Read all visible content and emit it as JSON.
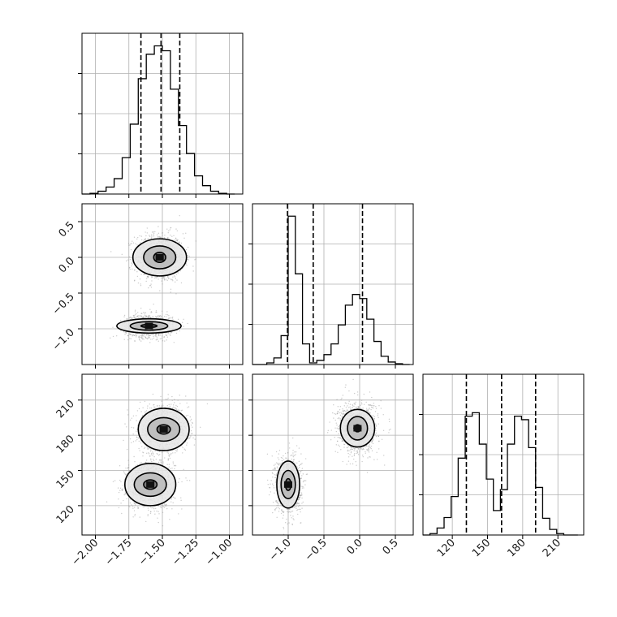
{
  "chart_data": {
    "type": "corner",
    "grid": true,
    "variables": [
      {
        "ticks": [
          -2.0,
          -1.75,
          -1.5,
          -1.25,
          -1.0
        ],
        "tick_labels": [
          "−2.00",
          "−1.75",
          "−1.50",
          "−1.25",
          "−1.00"
        ],
        "range": [
          -2.1,
          -0.9
        ]
      },
      {
        "ticks": [
          -1.0,
          -0.5,
          0.0,
          0.5
        ],
        "tick_labels": [
          "−1.0",
          "−0.5",
          "0.0",
          "0.5"
        ],
        "range": [
          -1.5,
          0.75
        ]
      },
      {
        "ticks": [
          120,
          150,
          180,
          210
        ],
        "tick_labels": [
          "120",
          "150",
          "180",
          "210"
        ],
        "range": [
          95,
          232
        ]
      }
    ],
    "histograms": [
      {
        "variable": 0,
        "bin_edges": [
          -2.1,
          -2.04,
          -1.98,
          -1.92,
          -1.86,
          -1.8,
          -1.74,
          -1.68,
          -1.62,
          -1.56,
          -1.5,
          -1.44,
          -1.38,
          -1.32,
          -1.26,
          -1.2,
          -1.14,
          -1.08,
          -1.02,
          -0.96
        ],
        "counts": [
          0,
          1,
          4,
          10,
          22,
          52,
          100,
          165,
          200,
          212,
          205,
          150,
          98,
          58,
          26,
          12,
          4,
          1,
          0
        ],
        "quantiles": [
          -1.66,
          -1.51,
          -1.37
        ],
        "ymax": 230
      },
      {
        "variable": 1,
        "bin_edges": [
          -1.5,
          -1.4,
          -1.3,
          -1.2,
          -1.1,
          -1.0,
          -0.9,
          -0.8,
          -0.7,
          -0.6,
          -0.5,
          -0.4,
          -0.3,
          -0.2,
          -0.1,
          0.0,
          0.1,
          0.2,
          0.3,
          0.4,
          0.5,
          0.6,
          0.7
        ],
        "counts": [
          0,
          0,
          2,
          8,
          35,
          180,
          110,
          25,
          2,
          5,
          12,
          25,
          48,
          72,
          85,
          80,
          55,
          28,
          10,
          3,
          1,
          0
        ],
        "quantiles": [
          -1.01,
          -0.65,
          0.04
        ],
        "ymax": 195
      },
      {
        "variable": 2,
        "bin_edges": [
          95,
          101,
          107,
          113,
          119,
          125,
          131,
          137,
          143,
          149,
          155,
          161,
          167,
          173,
          179,
          185,
          191,
          197,
          203,
          209,
          215,
          221,
          227
        ],
        "counts": [
          0,
          2,
          10,
          25,
          55,
          110,
          170,
          175,
          130,
          80,
          35,
          65,
          130,
          170,
          165,
          125,
          68,
          24,
          8,
          2,
          0,
          0
        ],
        "quantiles": [
          132,
          162,
          191
        ],
        "ymax": 230
      }
    ],
    "scatter_2d": [
      {
        "x_variable": 0,
        "y_variable": 1,
        "clusters": [
          {
            "center": [
              -1.52,
              0.0
            ],
            "spread": [
              0.09,
              0.17
            ],
            "levels": [
              [
                0.045,
                0.07
              ],
              [
                0.12,
                0.16
              ],
              [
                0.2,
                0.26
              ]
            ]
          },
          {
            "center": [
              -1.6,
              -0.96
            ],
            "spread": [
              0.09,
              0.08
            ],
            "levels": [
              [
                0.06,
                0.02
              ],
              [
                0.14,
                0.06
              ],
              [
                0.24,
                0.1
              ]
            ]
          }
        ]
      },
      {
        "x_variable": 0,
        "y_variable": 2,
        "clusters": [
          {
            "center": [
              -1.49,
              185
            ],
            "spread": [
              0.09,
              10
            ],
            "levels": [
              [
                0.05,
                4
              ],
              [
                0.12,
                10
              ],
              [
                0.19,
                18
              ]
            ]
          },
          {
            "center": [
              -1.59,
              138
            ],
            "spread": [
              0.09,
              10
            ],
            "levels": [
              [
                0.05,
                4
              ],
              [
                0.12,
                10
              ],
              [
                0.19,
                18
              ]
            ]
          }
        ]
      },
      {
        "x_variable": 1,
        "y_variable": 2,
        "clusters": [
          {
            "center": [
              -1.0,
              138
            ],
            "spread": [
              0.09,
              12
            ],
            "levels": [
              [
                0.04,
                5
              ],
              [
                0.1,
                12
              ],
              [
                0.16,
                20
              ]
            ]
          },
          {
            "center": [
              -0.03,
              186
            ],
            "spread": [
              0.14,
              11
            ],
            "levels": [
              [
                0.05,
                3
              ],
              [
                0.14,
                10
              ],
              [
                0.24,
                16
              ]
            ]
          }
        ]
      }
    ],
    "colors": {
      "line": "#000000",
      "points": "#9a9a9a",
      "grid": "#b0b0b0"
    }
  }
}
